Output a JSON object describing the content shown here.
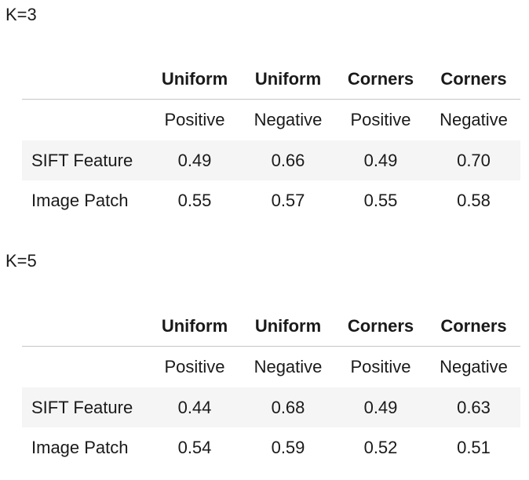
{
  "tables": [
    {
      "label": "K=3",
      "headers": [
        "",
        "Uniform",
        "Uniform",
        "Corners",
        "Corners"
      ],
      "subheaders": [
        "",
        "Positive",
        "Negative",
        "Positive",
        "Negative"
      ],
      "rows": [
        {
          "label": "SIFT Feature",
          "values": [
            "0.49",
            "0.66",
            "0.49",
            "0.70"
          ]
        },
        {
          "label": "Image Patch",
          "values": [
            "0.55",
            "0.57",
            "0.55",
            "0.58"
          ]
        }
      ]
    },
    {
      "label": "K=5",
      "headers": [
        "",
        "Uniform",
        "Uniform",
        "Corners",
        "Corners"
      ],
      "subheaders": [
        "",
        "Positive",
        "Negative",
        "Positive",
        "Negative"
      ],
      "rows": [
        {
          "label": "SIFT Feature",
          "values": [
            "0.44",
            "0.68",
            "0.49",
            "0.63"
          ]
        },
        {
          "label": "Image Patch",
          "values": [
            "0.54",
            "0.59",
            "0.52",
            "0.51"
          ]
        }
      ]
    }
  ]
}
